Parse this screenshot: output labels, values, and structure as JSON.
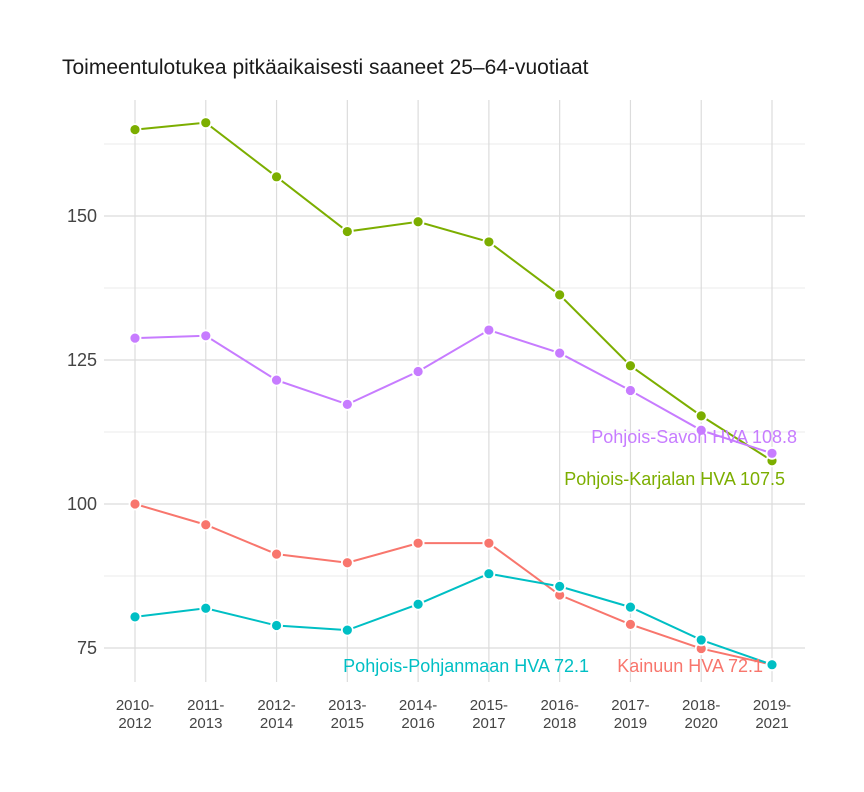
{
  "chart_data": {
    "type": "line",
    "title": "Toimeentulotukea pitkäaikaisesti saaneet 25–64-vuotiaat",
    "xlabel": "",
    "ylabel": "",
    "categories": [
      [
        "2010-",
        "2012"
      ],
      [
        "2011-",
        "2013"
      ],
      [
        "2012-",
        "2014"
      ],
      [
        "2013-",
        "2015"
      ],
      [
        "2014-",
        "2016"
      ],
      [
        "2015-",
        "2017"
      ],
      [
        "2016-",
        "2018"
      ],
      [
        "2017-",
        "2019"
      ],
      [
        "2018-",
        "2020"
      ],
      [
        "2019-",
        "2021"
      ]
    ],
    "yticks": [
      75,
      100,
      125,
      150
    ],
    "ylim": [
      68.5,
      169.5
    ],
    "grid": true,
    "legend": "none",
    "series": [
      {
        "name": "Pohjois-Karjalan HVA",
        "color": "#7cae00",
        "values": [
          165,
          166.2,
          156.8,
          147.3,
          149,
          145.5,
          136.3,
          124,
          115.3,
          107.5
        ],
        "end_label": "Pohjois-Karjalan HVA 107.5"
      },
      {
        "name": "Pohjois-Savon HVA",
        "color": "#c77cff",
        "values": [
          128.8,
          129.2,
          121.5,
          117.3,
          123,
          130.2,
          126.2,
          119.7,
          112.8,
          108.8
        ],
        "end_label": "Pohjois-Savon HVA 108.8"
      },
      {
        "name": "Kainuun HVA",
        "color": "#f8766d",
        "values": [
          100,
          96.4,
          91.3,
          89.8,
          93.2,
          93.2,
          84.2,
          79.1,
          74.9,
          72.1
        ],
        "end_label": "Kainuun HVA 72.1"
      },
      {
        "name": "Pohjois-Pohjanmaan HVA",
        "color": "#00bfc4",
        "values": [
          80.4,
          81.9,
          78.9,
          78.1,
          82.6,
          87.9,
          85.7,
          82.1,
          76.4,
          72.1
        ],
        "end_label": "Pohjois-Pohjanmaan HVA 72.1"
      }
    ]
  }
}
